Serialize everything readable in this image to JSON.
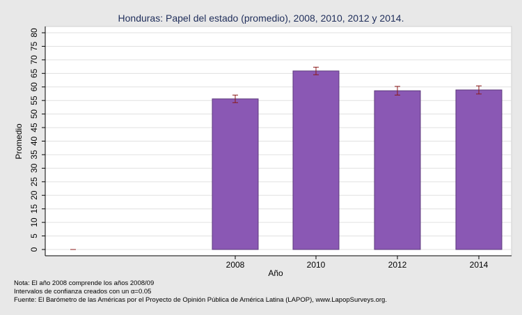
{
  "chart_data": {
    "type": "bar",
    "title": "Honduras: Papel del estado (promedio), 2008, 2010, 2012 y 2014.",
    "xlabel": "Año",
    "ylabel": "Promedio",
    "categories": [
      "",
      "2008",
      "2010",
      "2012",
      "2014"
    ],
    "values": [
      0,
      55.6,
      65.9,
      58.6,
      58.9
    ],
    "error_low": [
      0,
      54.2,
      64.5,
      57.0,
      57.4
    ],
    "error_high": [
      0,
      57.0,
      67.3,
      60.2,
      60.4
    ],
    "ylim": [
      0,
      80
    ],
    "yticks": [
      0,
      5,
      10,
      15,
      20,
      25,
      30,
      35,
      40,
      45,
      50,
      55,
      60,
      65,
      70,
      75,
      80
    ],
    "grid": true,
    "colors": {
      "bar_fill": "#8a58b4",
      "bar_stroke": "#5c3a7c",
      "error_bar": "#8b1a1a",
      "plot_bg": "#ffffff",
      "page_bg": "#e8e8e8",
      "grid": "#e0e0e0"
    }
  },
  "notes": {
    "line1": "Nota: El año 2008 comprende los años 2008/09",
    "line2": "Intervalos de confianza creados con un α=0.05",
    "line3": "Fuente: El Barómetro de las Américas por el Proyecto de Opinión Pública de América Latina (LAPOP), www.LapopSurveys.org."
  }
}
